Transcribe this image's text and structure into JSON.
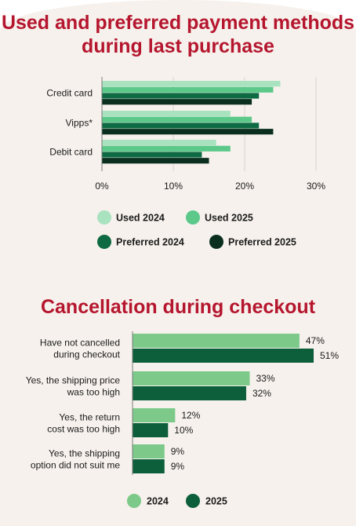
{
  "chart_data": [
    {
      "type": "bar",
      "orientation": "horizontal",
      "title": "Used and preferred payment methods during last purchase",
      "categories": [
        "Credit card",
        "Vipps*",
        "Debit card"
      ],
      "series": [
        {
          "name": "Used 2024",
          "color": "#a8e2bf",
          "values": [
            25,
            18,
            16
          ]
        },
        {
          "name": "Used 2025",
          "color": "#5cc98a",
          "values": [
            24,
            21,
            18
          ]
        },
        {
          "name": "Preferred 2024",
          "color": "#0d6a42",
          "values": [
            22,
            22,
            14
          ]
        },
        {
          "name": "Preferred 2025",
          "color": "#0a2f1f",
          "values": [
            21,
            24,
            15
          ]
        }
      ],
      "xlim": [
        0,
        30
      ],
      "ticks": [
        0,
        10,
        20,
        30
      ],
      "tick_labels": [
        "0%",
        "10%",
        "20%",
        "30%"
      ],
      "grid": true,
      "legend_position": "bottom"
    },
    {
      "type": "bar",
      "orientation": "horizontal",
      "title": "Cancellation during checkout",
      "categories": [
        [
          "Have not cancelled",
          "during checkout"
        ],
        [
          "Yes, the shipping price",
          "was too high"
        ],
        [
          "Yes, the return",
          "cost was too high"
        ],
        [
          "Yes, the shipping",
          "option did not suit me"
        ]
      ],
      "series": [
        {
          "name": "2024",
          "color": "#7cc98a",
          "values": [
            47,
            33,
            12,
            9
          ],
          "labels": [
            "47%",
            "33%",
            "12%",
            "9%"
          ]
        },
        {
          "name": "2025",
          "color": "#0d5e3a",
          "values": [
            51,
            32,
            10,
            9
          ],
          "labels": [
            "51%",
            "32%",
            "10%",
            "9%"
          ]
        }
      ],
      "xlim": [
        0,
        51
      ],
      "legend_position": "bottom"
    }
  ]
}
